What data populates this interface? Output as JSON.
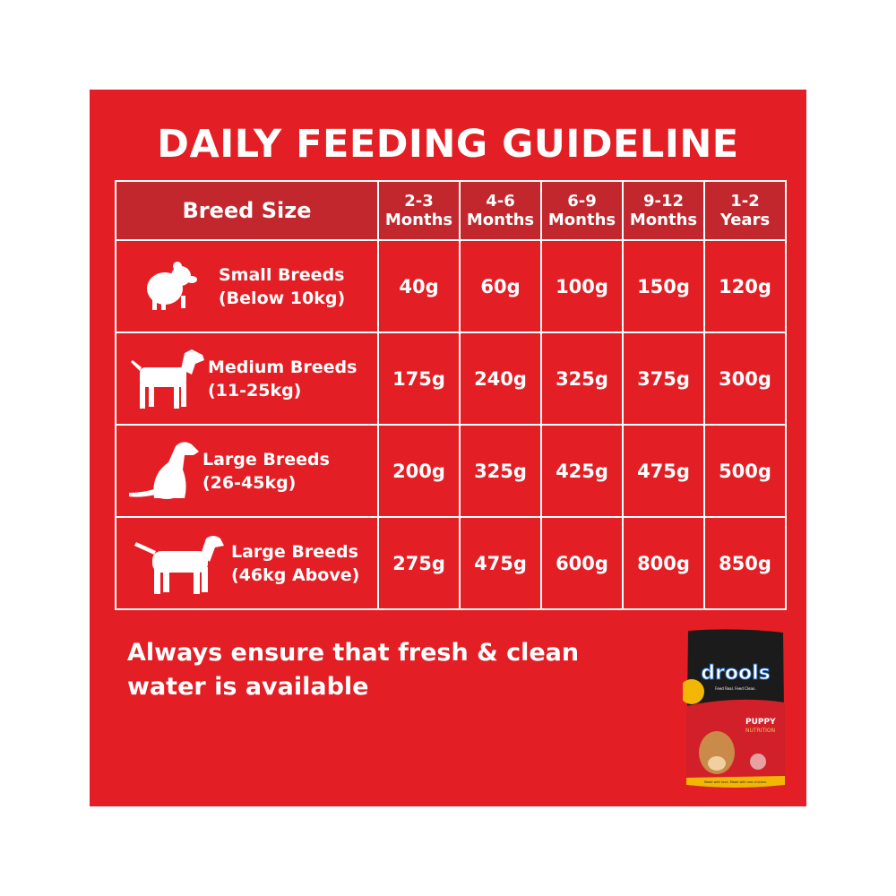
{
  "title": "DAILY FEEDING GUIDELINE",
  "colors": {
    "background": "#e31e24",
    "header_row": "#c1272d",
    "text": "#ffffff"
  },
  "table": {
    "headers": [
      {
        "line1": "Breed Size",
        "line2": ""
      },
      {
        "line1": "2-3",
        "line2": "Months"
      },
      {
        "line1": "4-6",
        "line2": "Months"
      },
      {
        "line1": "6-9",
        "line2": "Months"
      },
      {
        "line1": "9-12",
        "line2": "Months"
      },
      {
        "line1": "1-2",
        "line2": "Years"
      }
    ],
    "rows": [
      {
        "icon": "small-dog-icon",
        "name": "Small Breeds",
        "weight": "(Below 10kg)",
        "values": [
          "40g",
          "60g",
          "100g",
          "150g",
          "120g"
        ]
      },
      {
        "icon": "medium-dog-icon",
        "name": "Medium Breeds",
        "weight": "(11-25kg)",
        "values": [
          "175g",
          "240g",
          "325g",
          "375g",
          "300g"
        ]
      },
      {
        "icon": "large-dog-sitting-icon",
        "name": "Large Breeds",
        "weight": "(26-45kg)",
        "values": [
          "200g",
          "325g",
          "425g",
          "475g",
          "500g"
        ]
      },
      {
        "icon": "large-dog-standing-icon",
        "name": "Large Breeds",
        "weight": "(46kg Above)",
        "values": [
          "275g",
          "475g",
          "600g",
          "800g",
          "850g"
        ]
      }
    ]
  },
  "note": "Always ensure that fresh & clean water is available",
  "product_image": {
    "brand": "drools",
    "tagline": "Feed Real. Feed Clean.",
    "line1": "PUPPY",
    "line2": "NUTRITION",
    "footer": "Made with love. Made with real chicken."
  }
}
